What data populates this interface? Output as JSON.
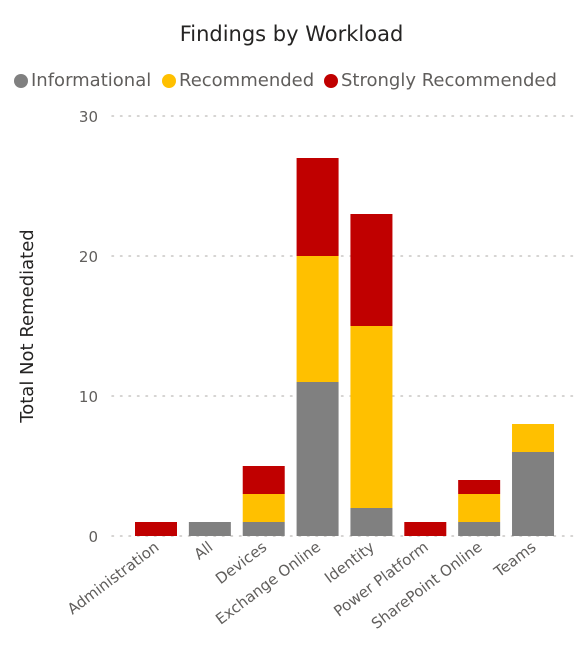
{
  "chart_data": {
    "type": "bar",
    "stacked": true,
    "title": "Findings by Workload",
    "xlabel": "",
    "ylabel": "Total Not Remediated",
    "ylim": [
      0,
      30
    ],
    "yticks": [
      0,
      10,
      20,
      30
    ],
    "grid": true,
    "legend_position": "top",
    "categories": [
      "Administration",
      "All",
      "Devices",
      "Exchange Online",
      "Identity",
      "Power Platform",
      "SharePoint Online",
      "Teams"
    ],
    "series": [
      {
        "name": "Informational",
        "color": "#808080",
        "values": [
          0,
          1,
          1,
          11,
          2,
          0,
          1,
          6
        ]
      },
      {
        "name": "Recommended",
        "color": "#ffc000",
        "values": [
          0,
          0,
          2,
          9,
          13,
          0,
          2,
          2
        ]
      },
      {
        "name": "Strongly Recommended",
        "color": "#c00000",
        "values": [
          1,
          0,
          2,
          7,
          8,
          1,
          1,
          0
        ]
      }
    ]
  }
}
